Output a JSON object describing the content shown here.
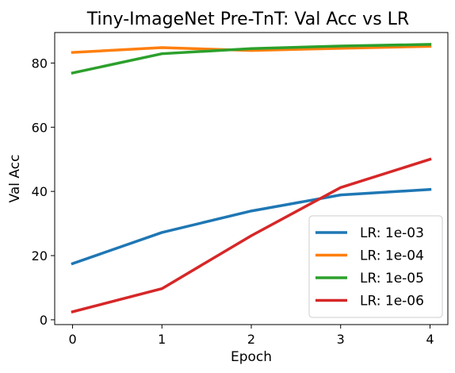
{
  "chart_data": {
    "type": "line",
    "title": "Tiny-ImageNet Pre-TnT: Val Acc vs LR",
    "xlabel": "Epoch",
    "ylabel": "Val Acc",
    "x": [
      0,
      1,
      2,
      3,
      4
    ],
    "xlim": [
      -0.2,
      4.2
    ],
    "ylim": [
      -1.5,
      89.5
    ],
    "xticks": [
      0,
      1,
      2,
      3,
      4
    ],
    "yticks": [
      0,
      20,
      40,
      60,
      80
    ],
    "grid": false,
    "legend_position": "lower-right",
    "series": [
      {
        "name": "LR: 1e-03",
        "color": "#1f77b4",
        "values": [
          17.5,
          27.2,
          33.9,
          38.9,
          40.6
        ]
      },
      {
        "name": "LR: 1e-04",
        "color": "#ff7f0e",
        "values": [
          83.3,
          84.8,
          83.9,
          84.6,
          85.2
        ]
      },
      {
        "name": "LR: 1e-05",
        "color": "#2ca02c",
        "values": [
          76.9,
          82.9,
          84.5,
          85.3,
          85.8
        ]
      },
      {
        "name": "LR: 1e-06",
        "color": "#d62728",
        "values": [
          2.5,
          9.7,
          26.2,
          41.2,
          50.0
        ]
      }
    ]
  }
}
